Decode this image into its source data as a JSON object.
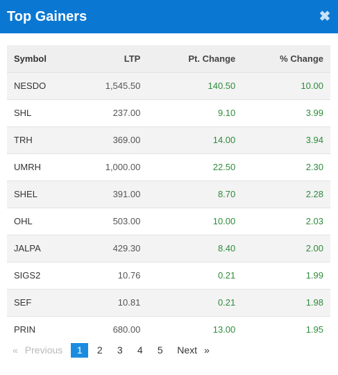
{
  "header": {
    "title": "Top Gainers",
    "close_glyph": "✖"
  },
  "table": {
    "columns": [
      "Symbol",
      "LTP",
      "Pt. Change",
      "% Change"
    ],
    "rows": [
      {
        "symbol": "NESDO",
        "ltp": "1,545.50",
        "pt_change": "140.50",
        "pct_change": "10.00"
      },
      {
        "symbol": "SHL",
        "ltp": "237.00",
        "pt_change": "9.10",
        "pct_change": "3.99"
      },
      {
        "symbol": "TRH",
        "ltp": "369.00",
        "pt_change": "14.00",
        "pct_change": "3.94"
      },
      {
        "symbol": "UMRH",
        "ltp": "1,000.00",
        "pt_change": "22.50",
        "pct_change": "2.30"
      },
      {
        "symbol": "SHEL",
        "ltp": "391.00",
        "pt_change": "8.70",
        "pct_change": "2.28"
      },
      {
        "symbol": "OHL",
        "ltp": "503.00",
        "pt_change": "10.00",
        "pct_change": "2.03"
      },
      {
        "symbol": "JALPA",
        "ltp": "429.30",
        "pt_change": "8.40",
        "pct_change": "2.00"
      },
      {
        "symbol": "SIGS2",
        "ltp": "10.76",
        "pt_change": "0.21",
        "pct_change": "1.99"
      },
      {
        "symbol": "SEF",
        "ltp": "10.81",
        "pt_change": "0.21",
        "pct_change": "1.98"
      },
      {
        "symbol": "PRIN",
        "ltp": "680.00",
        "pt_change": "13.00",
        "pct_change": "1.95"
      }
    ]
  },
  "pagination": {
    "prev_arrow": "«",
    "prev_label": "Previous",
    "pages": [
      "1",
      "2",
      "3",
      "4",
      "5"
    ],
    "active_page": "1",
    "next_label": "Next",
    "next_arrow": "»"
  },
  "colors": {
    "header_bg": "#0a78d2",
    "positive": "#2e8b3a",
    "active_page": "#1a8ce0"
  }
}
